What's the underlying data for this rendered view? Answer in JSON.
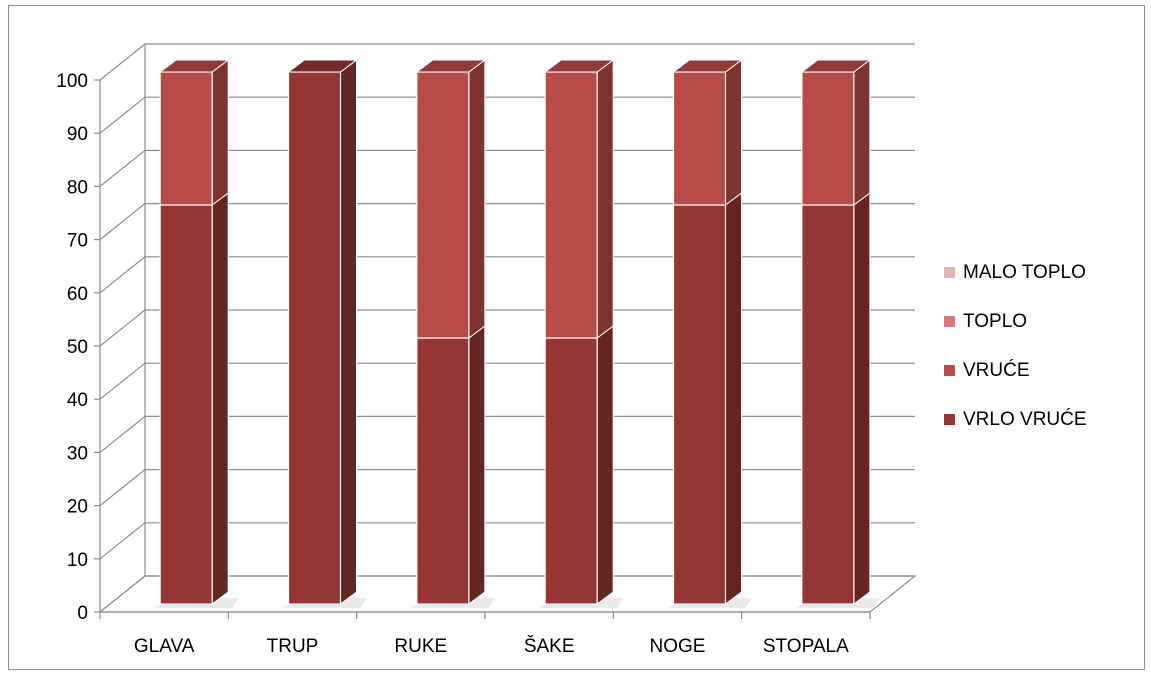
{
  "chart_data": {
    "type": "bar",
    "stacked": true,
    "three_d": true,
    "categories": [
      "GLAVA",
      "TRUP",
      "RUKE",
      "ŠAKE",
      "NOGE",
      "STOPALA"
    ],
    "series": [
      {
        "name": "VRLO VRUĆE",
        "values": [
          75,
          100,
          50,
          50,
          75,
          75
        ],
        "color": "#943634"
      },
      {
        "name": "VRUĆE",
        "values": [
          25,
          0,
          50,
          50,
          25,
          25
        ],
        "color": "#b84b47"
      },
      {
        "name": "TOPLO",
        "values": [
          0,
          0,
          0,
          0,
          0,
          0
        ],
        "color": "#d77a77"
      },
      {
        "name": "MALO TOPLO",
        "values": [
          0,
          0,
          0,
          0,
          0,
          0
        ],
        "color": "#e6b4b3"
      }
    ],
    "ylim": [
      0,
      100
    ],
    "yticks": [
      0,
      10,
      20,
      30,
      40,
      50,
      60,
      70,
      80,
      90,
      100
    ],
    "grid": true,
    "legend": "right",
    "legend_order": [
      "MALO TOPLO",
      "TOPLO",
      "VRUĆE",
      "VRLO VRUĆE"
    ],
    "title": "",
    "xlabel": "",
    "ylabel": ""
  }
}
